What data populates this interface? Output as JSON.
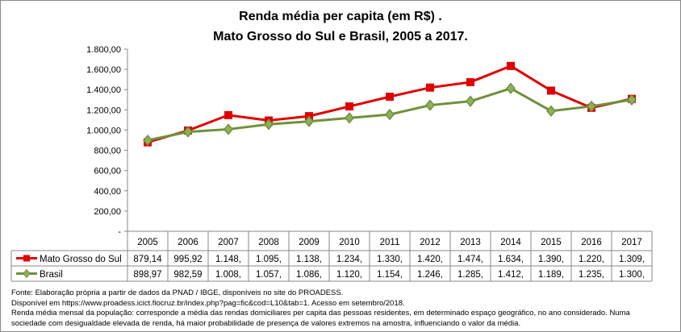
{
  "chart_data": {
    "type": "line",
    "title": "Renda média per capita (em R$) .",
    "subtitle": "Mato Grosso do Sul e Brasil, 2005 a 2017.",
    "categories": [
      "2005",
      "2006",
      "2007",
      "2008",
      "2009",
      "2010",
      "2011",
      "2012",
      "2013",
      "2014",
      "2015",
      "2016",
      "2017"
    ],
    "ylim": [
      0,
      1800
    ],
    "yticks": [
      "-",
      "200,00",
      "400,00",
      "600,00",
      "800,00",
      "1.000,00",
      "1.200,00",
      "1.400,00",
      "1.600,00",
      "1.800,00"
    ],
    "grid": false,
    "legend": "data-table",
    "series": [
      {
        "name": "Mato Grosso do Sul",
        "color": "#e00000",
        "marker": "square",
        "values": [
          879.14,
          995.92,
          1148,
          1095,
          1138,
          1234,
          1330,
          1420,
          1474,
          1634,
          1390,
          1220,
          1309
        ],
        "table": [
          "879,14",
          "995,92",
          "1.148,",
          "1.095,",
          "1.138,",
          "1.234,",
          "1.330,",
          "1.420,",
          "1.474,",
          "1.634,",
          "1.390,",
          "1.220,",
          "1.309,"
        ]
      },
      {
        "name": "Brasil",
        "color": "#6e913a",
        "marker": "diamond",
        "values": [
          898.97,
          982.59,
          1008,
          1057,
          1086,
          1120,
          1154,
          1246,
          1285,
          1412,
          1189,
          1235,
          1300
        ],
        "table": [
          "898,97",
          "982,59",
          "1.008,",
          "1.057,",
          "1.086,",
          "1.120,",
          "1.154,",
          "1.246,",
          "1.285,",
          "1.412,",
          "1.189,",
          "1.235,",
          "1.300,"
        ]
      }
    ]
  },
  "notes": [
    "Fonte: Elaboração própria a partir de dados da PNAD / IBGE, disponíveis no site do PROADESS.",
    "Disponível em https://www.proadess.icict.fiocruz.br/index.php?pag=fic&cod=L10&tab=1. Acesso em setembro/2018.",
    "Renda média mensal da população: corresponde a média das rendas domiciliares per capita das pessoas residentes, em determinado espaço geográfico, no ano considerado. Numa",
    "sociedade com desigualdade elevada de renda, há maior probabilidade de presença de valores extremos na amostra, influenciando o valor da média."
  ]
}
